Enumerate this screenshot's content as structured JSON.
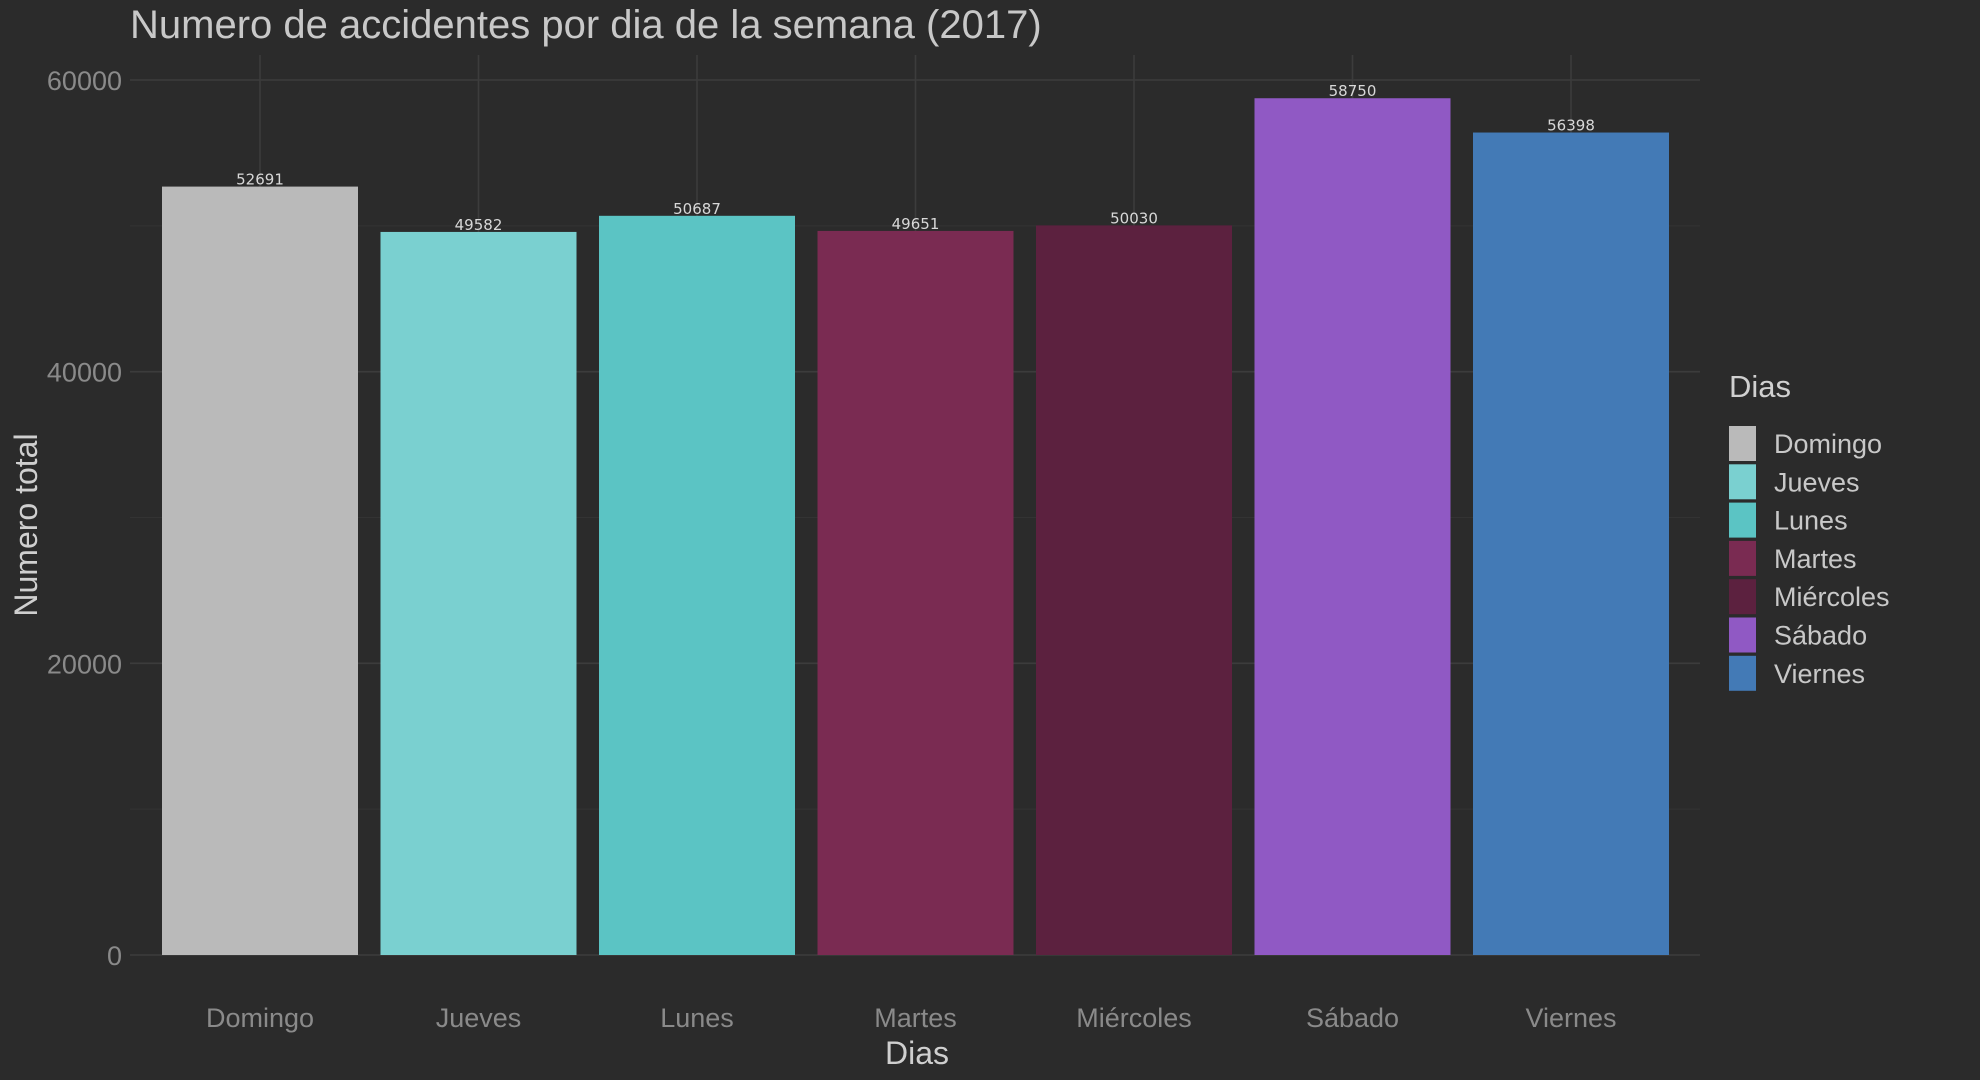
{
  "chart_data": {
    "type": "bar",
    "title": "Numero de accidentes por dia de la semana (2017)",
    "xlabel": "Dias",
    "ylabel": "Numero total",
    "categories": [
      "Domingo",
      "Jueves",
      "Lunes",
      "Martes",
      "Miércoles",
      "Sábado",
      "Viernes"
    ],
    "values": [
      52691,
      49582,
      50687,
      49651,
      50030,
      58750,
      56398
    ],
    "colors": [
      "#bababa",
      "#7ad0d0",
      "#5bc4c4",
      "#7a2b52",
      "#5c213f",
      "#9059c4",
      "#437ab6"
    ],
    "ylim": [
      0,
      60000
    ],
    "y_ticks": [
      0,
      20000,
      40000,
      60000
    ],
    "y_tick_labels": [
      "0",
      "20000",
      "40000",
      "60000"
    ],
    "grid": true,
    "legend": {
      "title": "Dias",
      "placement": "right",
      "entries": [
        "Domingo",
        "Jueves",
        "Lunes",
        "Martes",
        "Miércoles",
        "Sábado",
        "Viernes"
      ]
    },
    "data_labels": [
      "52691",
      "49582",
      "50687",
      "49651",
      "50030",
      "58750",
      "56398"
    ]
  }
}
